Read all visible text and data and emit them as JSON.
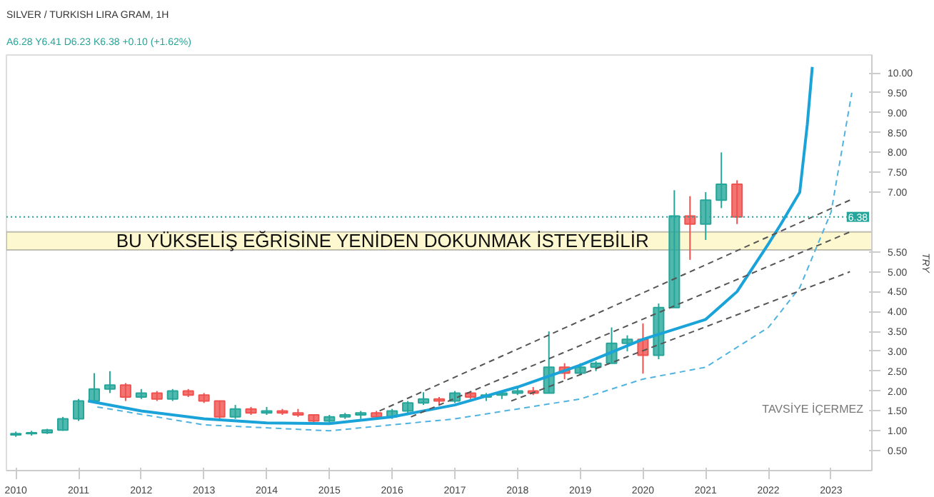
{
  "chart_data": {
    "type": "candlestick",
    "title": "SILVER / TURKISH LIRA GRAM, 1H",
    "subtitle": "A6.28 Y6.41 D6.23 K6.38 +0.10 (+1.62%)",
    "ylabel": "TRY",
    "x": [
      2010.0,
      2010.25,
      2010.5,
      2010.75,
      2011.0,
      2011.25,
      2011.5,
      2011.75,
      2012.0,
      2012.25,
      2012.5,
      2012.75,
      2013.0,
      2013.25,
      2013.5,
      2013.75,
      2014.0,
      2014.25,
      2014.5,
      2014.75,
      2015.0,
      2015.25,
      2015.5,
      2015.75,
      2016.0,
      2016.25,
      2016.5,
      2016.75,
      2017.0,
      2017.25,
      2017.5,
      2017.75,
      2018.0,
      2018.25,
      2018.5,
      2018.75,
      2019.0,
      2019.25,
      2019.5,
      2019.75,
      2020.0,
      2020.25,
      2020.5,
      2020.75,
      2021.0,
      2021.25,
      2021.5
    ],
    "ohlc": [
      [
        0.9,
        0.98,
        0.85,
        0.93
      ],
      [
        0.93,
        1.0,
        0.88,
        0.95
      ],
      [
        0.95,
        1.05,
        0.92,
        1.02
      ],
      [
        1.02,
        1.35,
        1.0,
        1.3
      ],
      [
        1.3,
        1.8,
        1.25,
        1.75
      ],
      [
        1.75,
        2.45,
        1.7,
        2.05
      ],
      [
        2.05,
        2.5,
        1.95,
        2.15
      ],
      [
        2.15,
        2.2,
        1.75,
        1.85
      ],
      [
        1.85,
        2.05,
        1.8,
        1.95
      ],
      [
        1.95,
        2.0,
        1.75,
        1.8
      ],
      [
        1.8,
        2.05,
        1.75,
        2.0
      ],
      [
        2.0,
        2.05,
        1.85,
        1.9
      ],
      [
        1.9,
        1.95,
        1.7,
        1.75
      ],
      [
        1.75,
        1.75,
        1.25,
        1.35
      ],
      [
        1.35,
        1.65,
        1.3,
        1.55
      ],
      [
        1.55,
        1.6,
        1.4,
        1.45
      ],
      [
        1.45,
        1.6,
        1.4,
        1.5
      ],
      [
        1.5,
        1.55,
        1.4,
        1.45
      ],
      [
        1.45,
        1.55,
        1.35,
        1.4
      ],
      [
        1.4,
        1.4,
        1.15,
        1.25
      ],
      [
        1.25,
        1.4,
        1.2,
        1.35
      ],
      [
        1.35,
        1.45,
        1.3,
        1.4
      ],
      [
        1.4,
        1.5,
        1.3,
        1.45
      ],
      [
        1.45,
        1.5,
        1.3,
        1.35
      ],
      [
        1.35,
        1.55,
        1.3,
        1.5
      ],
      [
        1.5,
        1.75,
        1.45,
        1.7
      ],
      [
        1.7,
        1.97,
        1.65,
        1.8
      ],
      [
        1.8,
        1.85,
        1.65,
        1.75
      ],
      [
        1.75,
        2.0,
        1.7,
        1.95
      ],
      [
        1.95,
        2.0,
        1.8,
        1.85
      ],
      [
        1.85,
        1.95,
        1.75,
        1.9
      ],
      [
        1.9,
        2.0,
        1.8,
        1.95
      ],
      [
        1.95,
        2.1,
        1.9,
        2.0
      ],
      [
        2.0,
        2.1,
        1.9,
        1.95
      ],
      [
        1.95,
        3.5,
        1.95,
        2.6
      ],
      [
        2.6,
        2.7,
        2.3,
        2.45
      ],
      [
        2.45,
        2.7,
        2.4,
        2.6
      ],
      [
        2.6,
        2.75,
        2.5,
        2.7
      ],
      [
        2.7,
        3.6,
        2.7,
        3.2
      ],
      [
        3.2,
        3.4,
        3.0,
        3.3
      ],
      [
        3.3,
        3.7,
        2.44,
        2.9
      ],
      [
        2.9,
        4.2,
        2.8,
        4.1
      ],
      [
        4.1,
        7.05,
        4.1,
        6.4
      ],
      [
        6.4,
        6.9,
        5.3,
        6.2
      ],
      [
        6.2,
        7.0,
        5.8,
        6.8
      ],
      [
        6.8,
        8.0,
        6.6,
        7.2
      ],
      [
        7.2,
        7.3,
        6.2,
        6.38
      ]
    ],
    "colors": [
      "#26a69a",
      "#26a69a",
      "#26a69a",
      "#26a69a",
      "#26a69a",
      "#26a69a",
      "#26a69a",
      "#ef5350",
      "#26a69a",
      "#ef5350",
      "#26a69a",
      "#ef5350",
      "#ef5350",
      "#ef5350",
      "#26a69a",
      "#ef5350",
      "#26a69a",
      "#ef5350",
      "#ef5350",
      "#ef5350",
      "#26a69a",
      "#26a69a",
      "#26a69a",
      "#ef5350",
      "#26a69a",
      "#26a69a",
      "#26a69a",
      "#ef5350",
      "#26a69a",
      "#ef5350",
      "#26a69a",
      "#26a69a",
      "#26a69a",
      "#ef5350",
      "#26a69a",
      "#ef5350",
      "#26a69a",
      "#26a69a",
      "#26a69a",
      "#26a69a",
      "#ef5350",
      "#26a69a",
      "#26a69a",
      "#ef5350",
      "#26a69a",
      "#26a69a",
      "#ef5350"
    ],
    "series": [
      {
        "type": "line",
        "color": "#1aa3d9",
        "line_style": "solid",
        "x": [
          2011.15,
          2012,
          2013,
          2014,
          2015,
          2016,
          2017,
          2018,
          2019,
          2020,
          2021,
          2021.5,
          2022,
          2022.2,
          2022.5,
          2022.62,
          2022.7
        ],
        "values": [
          1.75,
          1.5,
          1.3,
          1.2,
          1.18,
          1.35,
          1.65,
          2.1,
          2.65,
          3.3,
          3.8,
          4.5,
          5.7,
          6.2,
          7.0,
          8.7,
          10.15
        ]
      },
      {
        "type": "line",
        "color": "#4fb3e0",
        "line_style": "dashed",
        "x": [
          2011.3,
          2013,
          2015,
          2017,
          2019,
          2020,
          2021,
          2022,
          2022.5,
          2023,
          2023.33
        ],
        "values": [
          1.6,
          1.15,
          1.0,
          1.3,
          1.8,
          2.3,
          2.6,
          3.6,
          4.6,
          6.5,
          9.5
        ]
      },
      {
        "type": "line",
        "color": "#555555",
        "line_style": "dashed",
        "x": [
          2015.8,
          2023.3
        ],
        "values": [
          1.5,
          6.8
        ]
      },
      {
        "type": "line",
        "color": "#555555",
        "line_style": "dashed",
        "x": [
          2016.3,
          2023.3
        ],
        "values": [
          1.35,
          6.0
        ]
      },
      {
        "type": "line",
        "color": "#555555",
        "line_style": "dashed",
        "x": [
          2017.9,
          2023.3
        ],
        "values": [
          1.75,
          5.0
        ]
      }
    ],
    "bands": [
      {
        "axis": "y",
        "from": 5.55,
        "to": 6.0,
        "color": "#fdf8cf"
      }
    ],
    "ref_lines": [
      {
        "axis": "y",
        "value": 6.38,
        "label": "6.38",
        "color": "#26a69a",
        "line_style": "dotted"
      }
    ],
    "annotations": [
      "BU YÜKSELİŞ EĞRİSİNE YENİDEN  DOKUNMAK İSTEYEBİLİR",
      "TAVSİYE İÇERMEZ"
    ],
    "xlim": [
      2009.85,
      2023.65
    ],
    "xticks": [
      2010,
      2011,
      2012,
      2013,
      2014,
      2015,
      2016,
      2017,
      2018,
      2019,
      2020,
      2021,
      2022,
      2023
    ],
    "ylim": [
      0,
      10.45
    ],
    "yticks": [
      {
        "value": 0.5,
        "label": "0.50"
      },
      {
        "value": 1,
        "label": "1.00"
      },
      {
        "value": 1.5,
        "label": "1.50"
      },
      {
        "value": 2,
        "label": "2.00"
      },
      {
        "value": 2.5,
        "label": "2.50"
      },
      {
        "value": 3,
        "label": "3.00"
      },
      {
        "value": 3.5,
        "label": "3.50"
      },
      {
        "value": 4,
        "label": "4.00"
      },
      {
        "value": 4.5,
        "label": "4.50"
      },
      {
        "value": 5,
        "label": "5.00"
      },
      {
        "value": 5.5,
        "label": "5.50"
      },
      {
        "value": 7,
        "label": "7.00"
      },
      {
        "value": 7.5,
        "label": "7.50"
      },
      {
        "value": 8,
        "label": "8.00"
      },
      {
        "value": 8.5,
        "label": "8.50"
      },
      {
        "value": 9,
        "label": "9.00"
      },
      {
        "value": 9.5,
        "label": "9.50"
      },
      {
        "value": 10,
        "label": "10.00"
      }
    ],
    "grid": false
  }
}
